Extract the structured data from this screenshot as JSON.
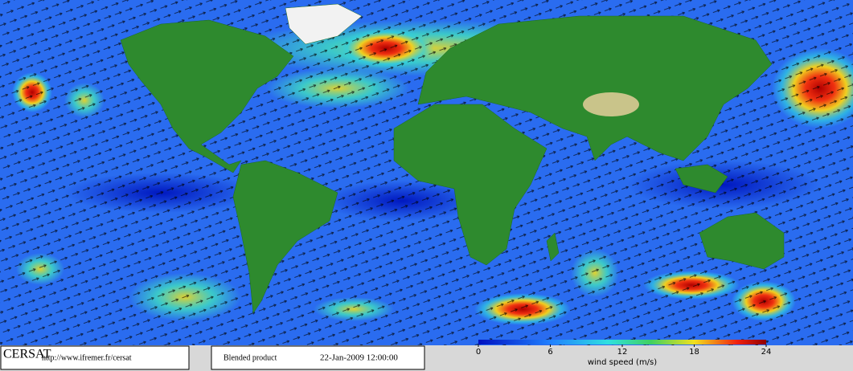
{
  "footer": {
    "logo": "CERSAT",
    "url": "http://www.ifremer.fr/cersat",
    "product": "Blended product",
    "date": "22-Jan-2009 12:00:00"
  },
  "colorbar": {
    "label": "wind speed (m/s)",
    "range": [
      0,
      24
    ],
    "ticks": [
      0,
      6,
      12,
      18,
      24
    ]
  }
}
